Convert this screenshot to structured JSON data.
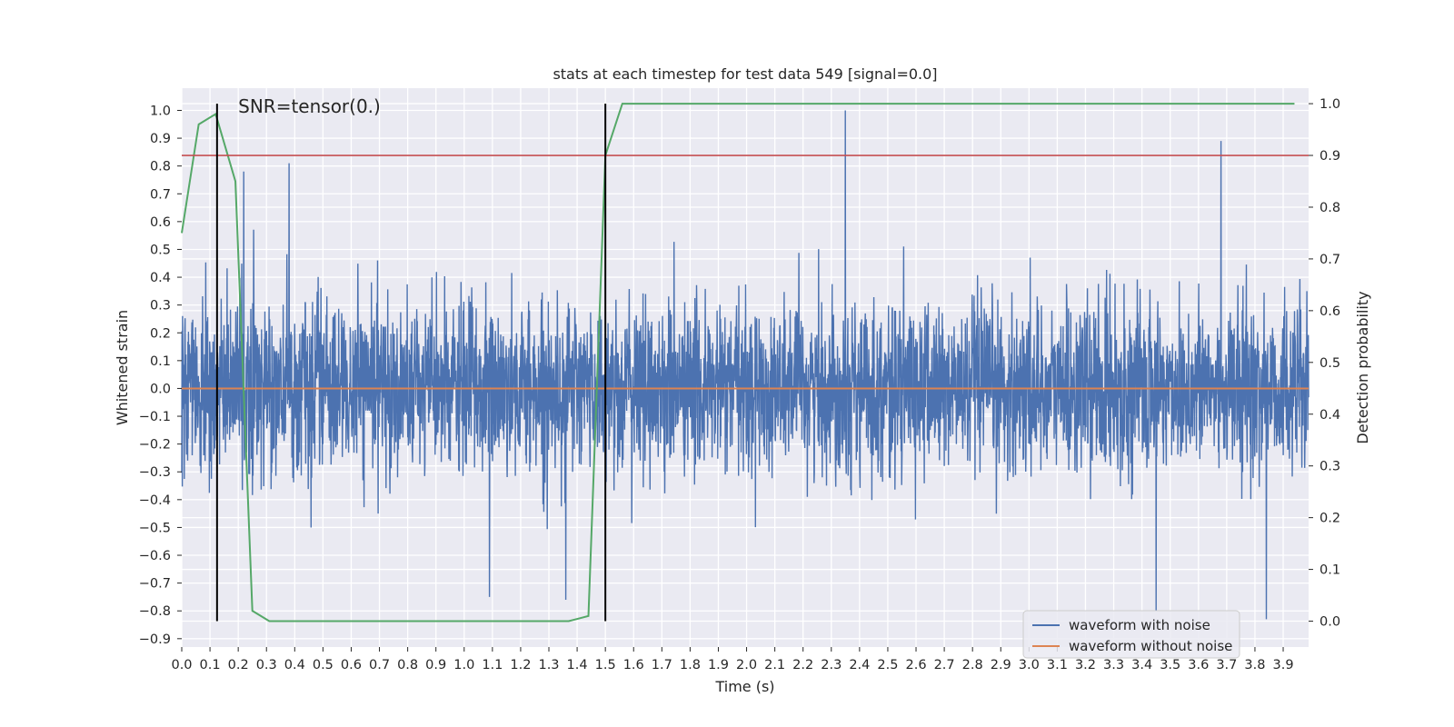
{
  "chart_data": {
    "type": "line",
    "title": "stats at each timestep for test data 549 [signal=0.0]",
    "annotation": "SNR=tensor(0.)",
    "xlabel": "Time (s)",
    "ylabel": "Whitened strain",
    "y2label": "Detection probability",
    "xlim": [
      0.0,
      3.99
    ],
    "ylim": [
      -0.93,
      1.08
    ],
    "y2lim": [
      -0.05,
      1.03
    ],
    "xticks": [
      "0.0",
      "0.1",
      "0.2",
      "0.3",
      "0.4",
      "0.5",
      "0.6",
      "0.7",
      "0.8",
      "0.9",
      "1.0",
      "1.1",
      "1.2",
      "1.3",
      "1.4",
      "1.5",
      "1.6",
      "1.7",
      "1.8",
      "1.9",
      "2.0",
      "2.1",
      "2.2",
      "2.3",
      "2.4",
      "2.5",
      "2.6",
      "2.7",
      "2.8",
      "2.9",
      "3.0",
      "3.1",
      "3.2",
      "3.3",
      "3.4",
      "3.5",
      "3.6",
      "3.7",
      "3.8",
      "3.9"
    ],
    "yticks": [
      "1.0",
      "0.9",
      "0.8",
      "0.7",
      "0.6",
      "0.5",
      "0.4",
      "0.3",
      "0.2",
      "0.1",
      "0.0",
      "−0.1",
      "−0.2",
      "−0.3",
      "−0.4",
      "−0.5",
      "−0.6",
      "−0.7",
      "−0.8",
      "−0.9"
    ],
    "y2ticks": [
      "1.0",
      "0.9",
      "0.8",
      "0.7",
      "0.6",
      "0.5",
      "0.4",
      "0.3",
      "0.2",
      "0.1",
      "0.0"
    ],
    "grid": true,
    "legend_position": "bottom-right",
    "series": [
      {
        "name": "waveform with noise",
        "color": "#4c72b0",
        "axis": "left",
        "description": "dense noise trace, typical amplitude about ±0.3",
        "peaks": [
          {
            "x": 2.35,
            "y": 1.0
          },
          {
            "x": 3.68,
            "y": 0.89
          },
          {
            "x": 0.22,
            "y": 0.78
          },
          {
            "x": 0.38,
            "y": 0.81
          },
          {
            "x": 3.45,
            "y": -0.8
          },
          {
            "x": 3.84,
            "y": -0.83
          },
          {
            "x": 1.09,
            "y": -0.75
          },
          {
            "x": 1.36,
            "y": -0.76
          }
        ]
      },
      {
        "name": "waveform without noise",
        "color": "#dd8452",
        "axis": "left",
        "x": [
          0.0,
          3.99
        ],
        "y": [
          0.0,
          0.0
        ]
      },
      {
        "color": "#55a868",
        "axis": "right",
        "x": [
          0.0,
          0.06,
          0.12,
          0.19,
          0.25,
          0.31,
          0.38,
          0.44,
          0.5,
          0.56,
          0.62,
          0.69,
          0.75,
          0.81,
          0.87,
          0.94,
          1.0,
          1.06,
          1.12,
          1.19,
          1.25,
          1.31,
          1.37,
          1.44,
          1.5,
          1.56,
          1.62,
          1.69,
          1.75,
          3.94
        ],
        "y": [
          0.75,
          0.96,
          0.98,
          0.85,
          0.02,
          0.0,
          0.0,
          0.0,
          0.0,
          0.0,
          0.0,
          0.0,
          0.0,
          0.0,
          0.0,
          0.0,
          0.0,
          0.0,
          0.0,
          0.0,
          0.0,
          0.0,
          0.0,
          0.01,
          0.9,
          1.0,
          1.0,
          1.0,
          1.0,
          1.0
        ]
      },
      {
        "color": "#c44e52",
        "axis": "right",
        "x": [
          0.0,
          3.99
        ],
        "y": [
          0.9,
          0.9
        ]
      }
    ],
    "vlines": [
      {
        "x": 0.125,
        "y_range": [
          0.0,
          1.0
        ],
        "axis": "right",
        "color": "#000000"
      },
      {
        "x": 1.5,
        "y_range": [
          0.0,
          1.0
        ],
        "axis": "right",
        "color": "#000000"
      }
    ]
  }
}
